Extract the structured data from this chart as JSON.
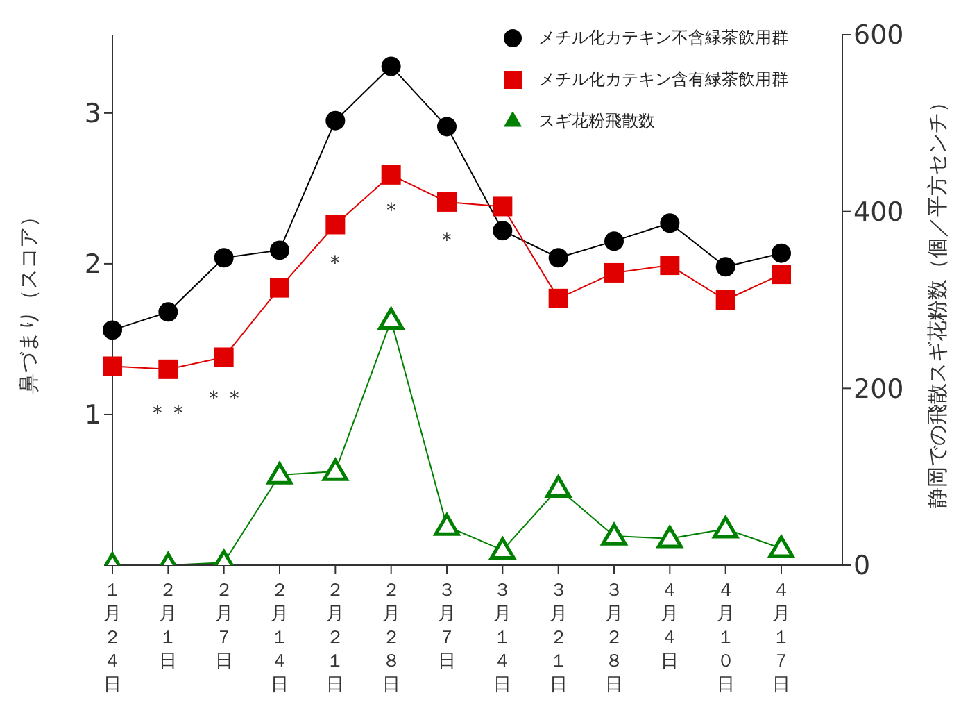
{
  "chart_data": {
    "type": "line",
    "ylabel": "鼻づまり（スコア）",
    "y2label": "静岡での飛散スギ花粉数（個／平方センチ）",
    "categories": [
      "１月２４日",
      "２月１日",
      "２月７日",
      "２月１４日",
      "２月２１日",
      "２月２８日",
      "３月７日",
      "３月１４日",
      "３月２１日",
      "３月２８日",
      "４月４日",
      "４月１０日",
      "４月１７日"
    ],
    "series": [
      {
        "name": "メチル化カテキン不含緑茶飲用群",
        "color": "#000000",
        "marker": "circle",
        "values": [
          1.56,
          1.68,
          2.04,
          2.09,
          2.95,
          3.31,
          2.91,
          2.22,
          2.04,
          2.15,
          2.27,
          1.98,
          2.07
        ]
      },
      {
        "name": "メチル化カテキン含有緑茶飲用群",
        "color": "#e00000",
        "marker": "square",
        "values": [
          1.32,
          1.3,
          1.38,
          1.84,
          2.26,
          2.59,
          2.41,
          2.38,
          1.77,
          1.94,
          1.99,
          1.76,
          1.93
        ]
      },
      {
        "name": "スギ花粉飛散数",
        "color": "#008000",
        "marker": "triangle",
        "axis": "y2",
        "values": [
          0,
          0,
          3,
          102,
          106,
          277,
          44,
          17,
          87,
          33,
          30,
          41,
          19
        ]
      }
    ],
    "ylim": [
      0,
      3.52
    ],
    "yticks": [
      {
        "value": 0,
        "label": null
      },
      1,
      2,
      3
    ],
    "y2lim": [
      0,
      600
    ],
    "y2ticks": [
      0,
      200,
      400,
      600
    ],
    "annotations": [
      "＊＊",
      "＊＊",
      "＊",
      "＊",
      "＊"
    ],
    "grid": false,
    "legend": "top right",
    "line_style": "solid"
  }
}
